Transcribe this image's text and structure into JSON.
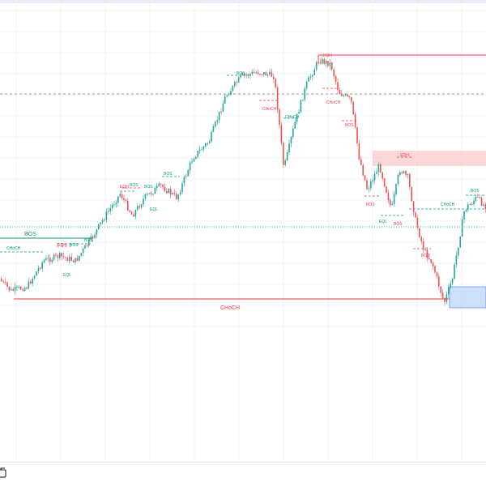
{
  "colors": {
    "up": "#26a69a",
    "down": "#ef5350",
    "bull_label": "#089981",
    "bear_label": "#f23645",
    "grid": "#f0f3fa",
    "supply_zone": "#f8c9cc",
    "demand_zone": "#c9dcf8",
    "demand_border": "#2962ff"
  },
  "labels": {
    "bos_1": "BOS",
    "choch_1": "CHoCH",
    "eqh_1": "EQH",
    "bos_2": "BOS",
    "bos_3": "BOS",
    "eql_1": "EQL",
    "bos_4": "BOS",
    "eqh_2": "EQH",
    "bos_5": "BOS",
    "bos_6": "BOS",
    "eql_2": "EQL",
    "bos_7": "BOS",
    "choch_2": "CHoCH",
    "choch_3": "CHoCH",
    "eqh_3": "EQH",
    "choch_4": "CHoCH",
    "bos_8": "BOS",
    "eqh_4": "EQH",
    "bos_9": "BOS",
    "eql_3": "EQL",
    "bos_10": "BOS",
    "bos_11": "BOS",
    "choch_5": "CHoCH",
    "bos_12": "BOS",
    "choch_main": "CHoCH"
  },
  "toolbar": {
    "icon": "tool-icon"
  }
}
